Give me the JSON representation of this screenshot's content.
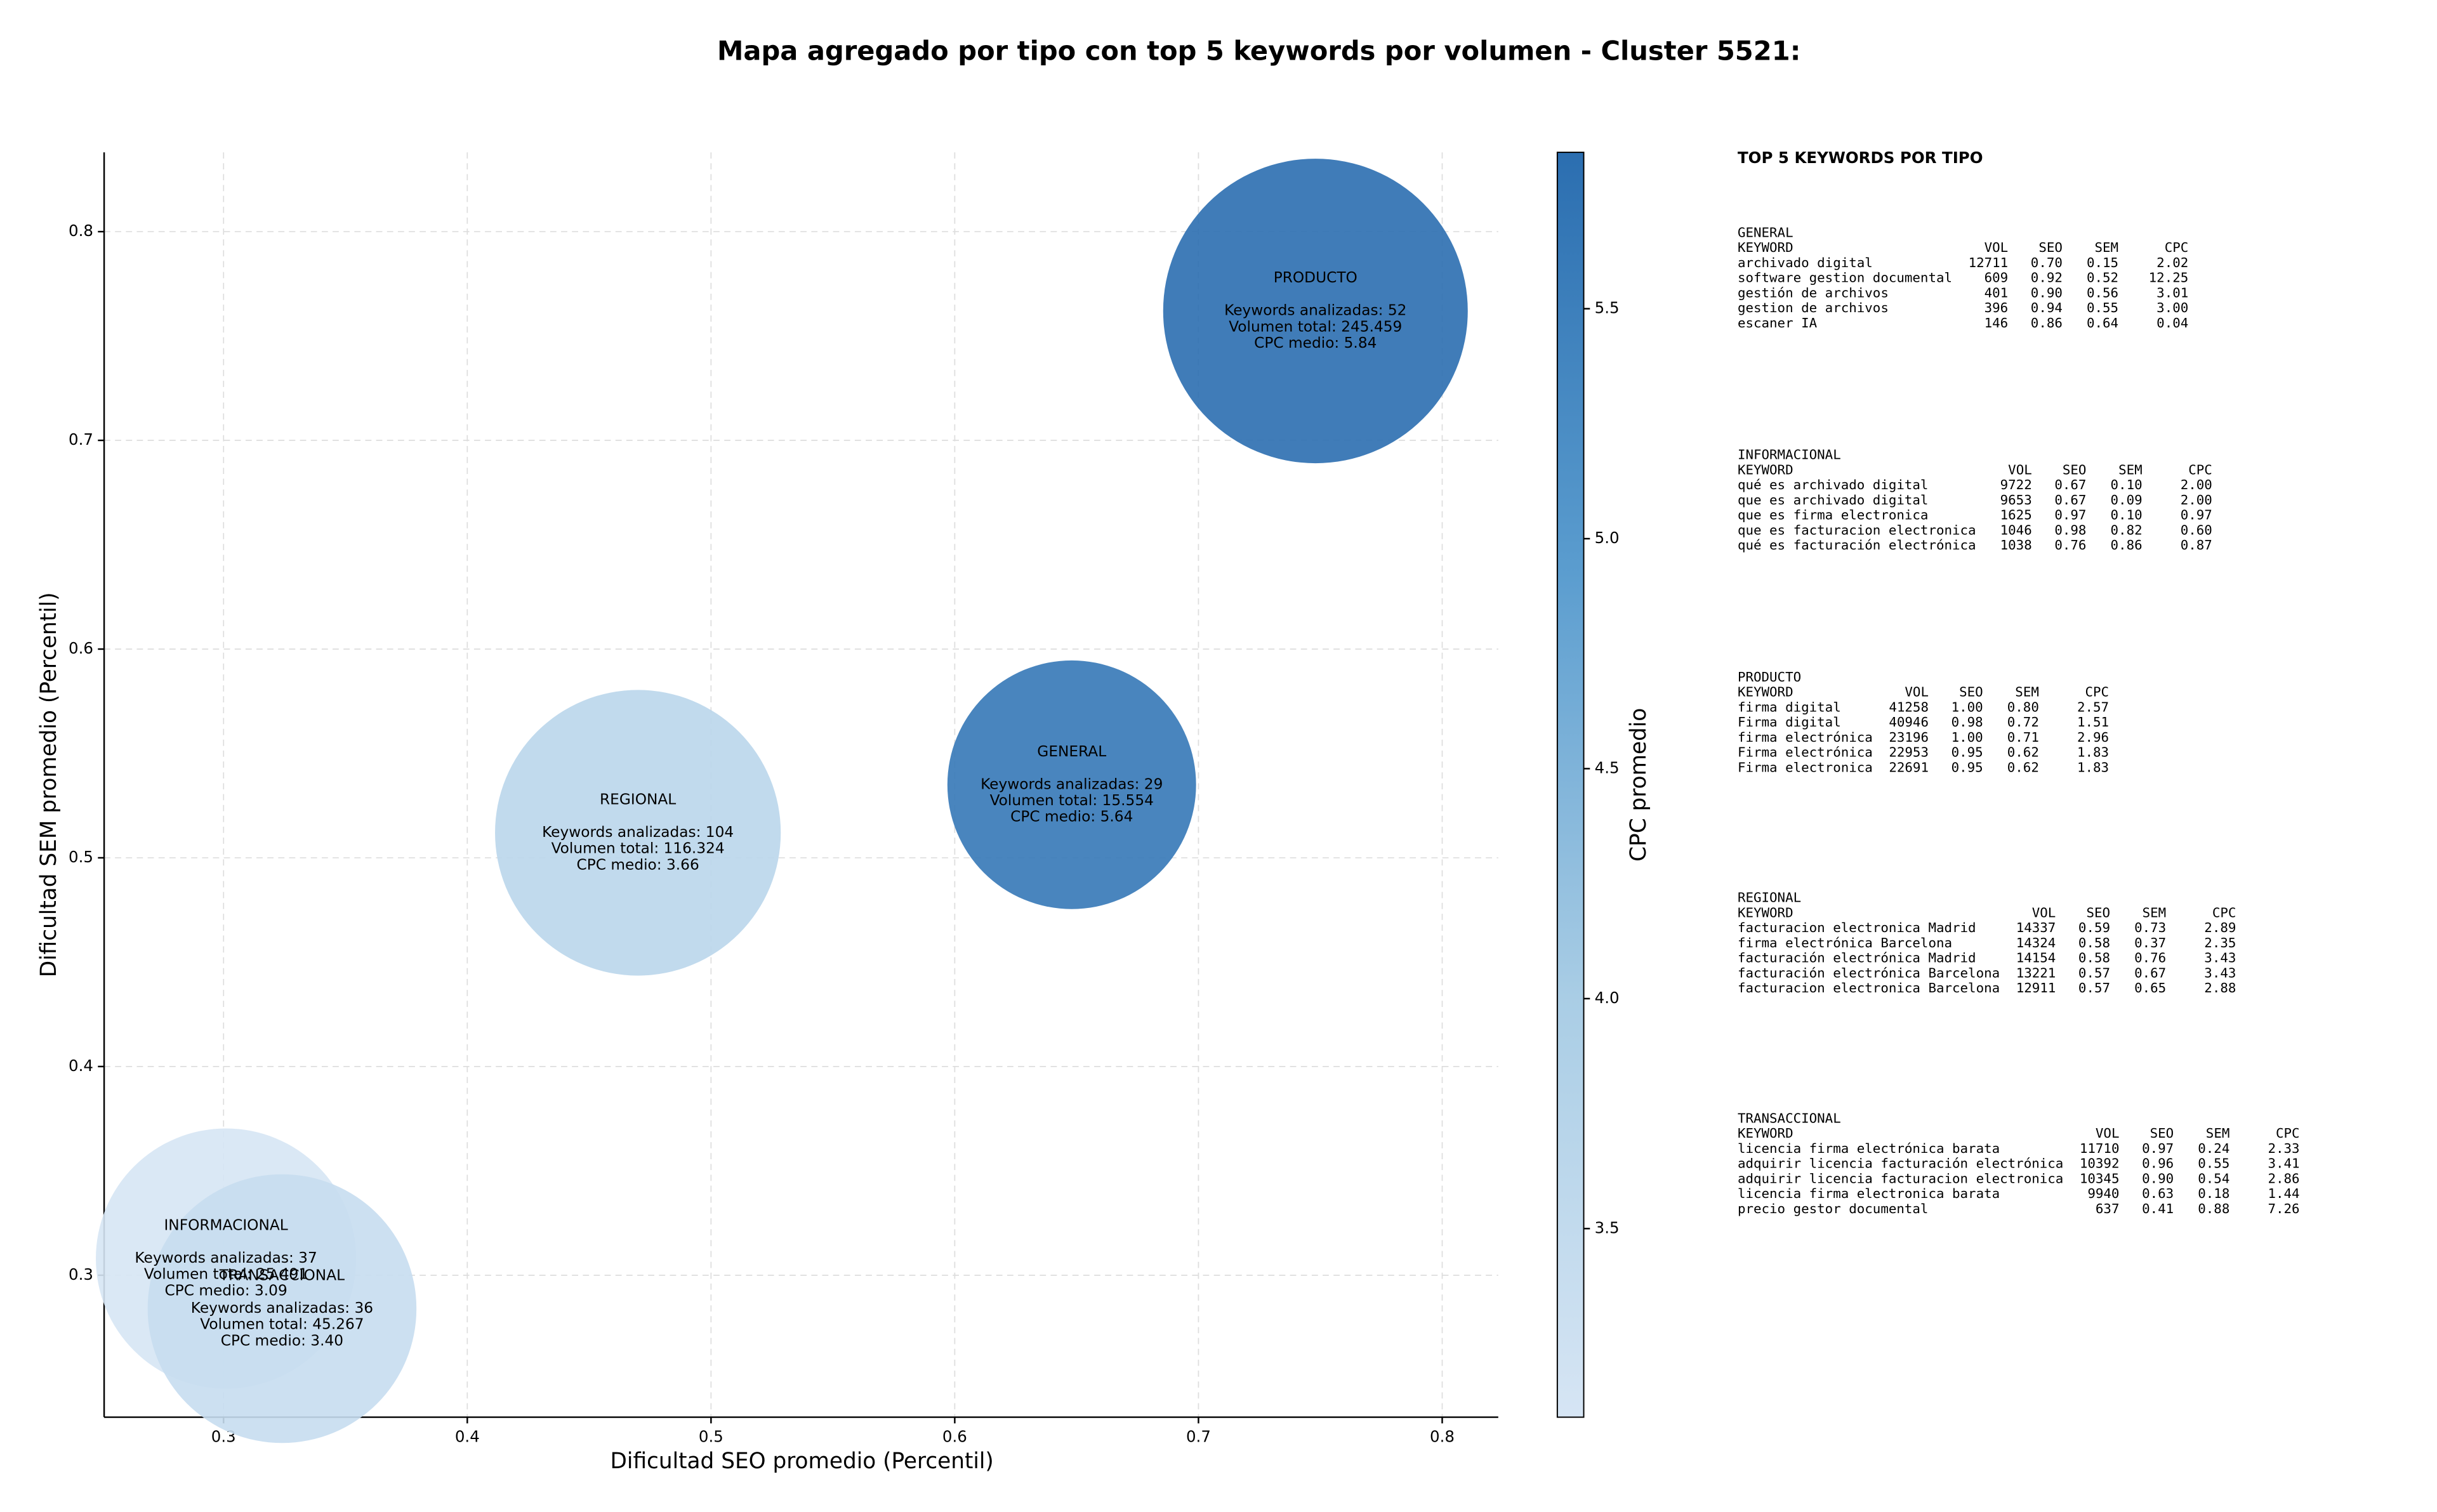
{
  "chart_data": {
    "type": "bubble",
    "title": "Mapa agregado por tipo con top 5 keywords por volumen - Cluster 5521:",
    "x_label": "Dificultad SEO promedio (Percentil)",
    "y_label": "Dificultad SEM promedio (Percentil)",
    "colorbar_label": "CPC promedio",
    "categories": [
      "PRODUCTO",
      "GENERAL",
      "REGIONAL",
      "INFORMACIONAL",
      "TRANSACCIONAL"
    ],
    "x": [
      0.748,
      0.648,
      0.47,
      0.301,
      0.324
    ],
    "values": [
      0.762,
      0.535,
      0.512,
      0.308,
      0.284
    ],
    "volume": [
      245459,
      15554,
      116324,
      25491,
      45267
    ],
    "cpc": [
      5.84,
      5.64,
      3.66,
      3.09,
      3.4
    ],
    "annotations": [
      [
        "Keywords analizadas: 52",
        "Volumen total: 245.459",
        "CPC medio: 5.84"
      ],
      [
        "Keywords analizadas: 29",
        "Volumen total: 15.554",
        "CPC medio: 5.64"
      ],
      [
        "Keywords analizadas: 104",
        "Volumen total: 116.324",
        "CPC medio: 3.66"
      ],
      [
        "Keywords analizadas: 37",
        "Volumen total: 25.491",
        "CPC medio: 3.09"
      ],
      [
        "Keywords analizadas: 36",
        "Volumen total: 45.267",
        "CPC medio: 3.40"
      ]
    ],
    "xlim": [
      0.251,
      0.823
    ],
    "ylim": [
      0.232,
      0.838
    ],
    "xticks": [
      0.3,
      0.4,
      0.5,
      0.6,
      0.7,
      0.8
    ],
    "yticks": [
      0.3,
      0.4,
      0.5,
      0.6,
      0.7,
      0.8
    ],
    "clim": [
      3.09,
      5.84
    ],
    "cticks": [
      3.5,
      {
        "value": 4,
        "label": "4.0"
      },
      4.5,
      {
        "value": 5,
        "label": "5.0"
      },
      5.5
    ],
    "colormap": [
      "#d6e5f4",
      "#a9cde5",
      "#5b9dcf",
      "#2b6eb0"
    ],
    "grid": true
  },
  "keywords_panel": {
    "title": "TOP 5 KEYWORDS POR TIPO",
    "columns": [
      "KEYWORD",
      "VOL",
      "SEO",
      "SEM",
      "CPC"
    ],
    "groups": [
      {
        "name": "GENERAL",
        "rows": [
          [
            "archivado digital",
            "12711",
            "0.70",
            "0.15",
            "2.02"
          ],
          [
            "software gestion documental",
            "609",
            "0.92",
            "0.52",
            "12.25"
          ],
          [
            "gestión de archivos",
            "401",
            "0.90",
            "0.56",
            "3.01"
          ],
          [
            "gestion de archivos",
            "396",
            "0.94",
            "0.55",
            "3.00"
          ],
          [
            "escaner IA",
            "146",
            "0.86",
            "0.64",
            "0.04"
          ]
        ]
      },
      {
        "name": "INFORMACIONAL",
        "rows": [
          [
            "qué es archivado digital",
            "9722",
            "0.67",
            "0.10",
            "2.00"
          ],
          [
            "que es archivado digital",
            "9653",
            "0.67",
            "0.09",
            "2.00"
          ],
          [
            "que es firma electronica",
            "1625",
            "0.97",
            "0.10",
            "0.97"
          ],
          [
            "que es facturacion electronica",
            "1046",
            "0.98",
            "0.82",
            "0.60"
          ],
          [
            "qué es facturación electrónica",
            "1038",
            "0.76",
            "0.86",
            "0.87"
          ]
        ]
      },
      {
        "name": "PRODUCTO",
        "rows": [
          [
            "firma digital",
            "41258",
            "1.00",
            "0.80",
            "2.57"
          ],
          [
            "Firma digital",
            "40946",
            "0.98",
            "0.72",
            "1.51"
          ],
          [
            "firma electrónica",
            "23196",
            "1.00",
            "0.71",
            "2.96"
          ],
          [
            "Firma electrónica",
            "22953",
            "0.95",
            "0.62",
            "1.83"
          ],
          [
            "Firma electronica",
            "22691",
            "0.95",
            "0.62",
            "1.83"
          ]
        ]
      },
      {
        "name": "REGIONAL",
        "rows": [
          [
            "facturacion electronica Madrid",
            "14337",
            "0.59",
            "0.73",
            "2.89"
          ],
          [
            "firma electrónica Barcelona",
            "14324",
            "0.58",
            "0.37",
            "2.35"
          ],
          [
            "facturación electrónica Madrid",
            "14154",
            "0.58",
            "0.76",
            "3.43"
          ],
          [
            "facturación electrónica Barcelona",
            "13221",
            "0.57",
            "0.67",
            "3.43"
          ],
          [
            "facturacion electronica Barcelona",
            "12911",
            "0.57",
            "0.65",
            "2.88"
          ]
        ]
      },
      {
        "name": "TRANSACCIONAL",
        "rows": [
          [
            "licencia firma electrónica barata",
            "11710",
            "0.97",
            "0.24",
            "2.33"
          ],
          [
            "adquirir licencia facturación electrónica",
            "10392",
            "0.96",
            "0.55",
            "3.41"
          ],
          [
            "adquirir licencia facturacion electronica",
            "10345",
            "0.90",
            "0.54",
            "2.86"
          ],
          [
            "licencia firma electronica barata",
            "9940",
            "0.63",
            "0.18",
            "1.44"
          ],
          [
            "precio gestor documental",
            "637",
            "0.41",
            "0.88",
            "7.26"
          ]
        ]
      }
    ]
  }
}
